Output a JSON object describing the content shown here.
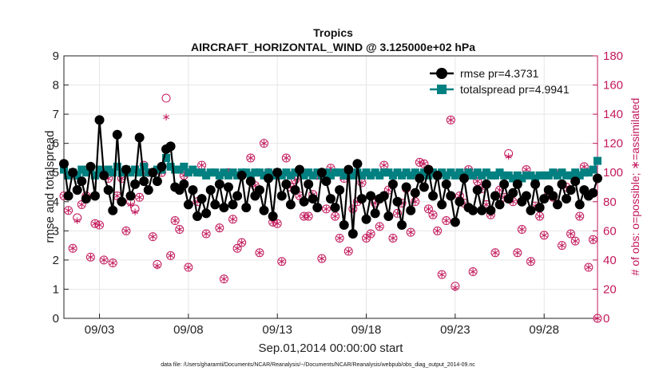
{
  "chart_data": {
    "type": "line",
    "title": "Tropics",
    "subtitle": "AIRCRAFT_HORIZONTAL_WIND @ 3.125000e+02 hPa",
    "xlabel": "Sep.01,2014 00:00:00 start",
    "ylabel": "rmse and totalspread",
    "ylabel_right": "# of obs: o=possible; ∗=assimilated",
    "footnote": "data file: /Users/gharamti/Documents/NCAR/Reanalysis/~/Documents/NCAR/Reanalysis/webpub/obs_diag_output_2014-09.nc",
    "xlim": [
      1,
      31
    ],
    "ylim": [
      0,
      9
    ],
    "ylim_right": [
      0,
      180
    ],
    "x_ticks": [
      3,
      8,
      13,
      18,
      23,
      28
    ],
    "x_tick_labels": [
      "09/03",
      "09/08",
      "09/13",
      "09/18",
      "09/23",
      "09/28"
    ],
    "y_ticks": [
      0,
      1,
      2,
      3,
      4,
      5,
      6,
      7,
      8,
      9
    ],
    "y_tick_labels": [
      "0",
      "1",
      "2",
      "3",
      "4",
      "5",
      "6",
      "7",
      "8",
      "9"
    ],
    "y_right_ticks": [
      0,
      20,
      40,
      60,
      80,
      100,
      120,
      140,
      160,
      180
    ],
    "y_right_tick_labels": [
      "0",
      "20",
      "40",
      "60",
      "80",
      "100",
      "120",
      "140",
      "160",
      "180"
    ],
    "grid": true,
    "legend_position": "top-right",
    "colors": {
      "rmse": "#000000",
      "totalspread": "#008080",
      "obs": "#c2185b"
    },
    "series": [
      {
        "name": "rmse pr=4.3731",
        "axis": "left",
        "x": [
          1.0,
          1.25,
          1.5,
          1.75,
          2.0,
          2.25,
          2.5,
          2.75,
          3.0,
          3.25,
          3.5,
          3.75,
          4.0,
          4.25,
          4.5,
          4.75,
          5.0,
          5.25,
          5.5,
          5.75,
          6.0,
          6.25,
          6.5,
          6.75,
          7.0,
          7.25,
          7.5,
          7.75,
          8.0,
          8.25,
          8.5,
          8.75,
          9.0,
          9.25,
          9.5,
          9.75,
          10.0,
          10.25,
          10.5,
          10.75,
          11.0,
          11.25,
          11.5,
          11.75,
          12.0,
          12.25,
          12.5,
          12.75,
          13.0,
          13.25,
          13.5,
          13.75,
          14.0,
          14.25,
          14.5,
          14.75,
          15.0,
          15.25,
          15.5,
          15.75,
          16.0,
          16.25,
          16.5,
          16.75,
          17.0,
          17.25,
          17.5,
          17.75,
          18.0,
          18.25,
          18.5,
          18.75,
          19.0,
          19.25,
          19.5,
          19.75,
          20.0,
          20.25,
          20.5,
          20.75,
          21.0,
          21.25,
          21.5,
          21.75,
          22.0,
          22.25,
          22.5,
          22.75,
          23.0,
          23.25,
          23.5,
          23.75,
          24.0,
          24.25,
          24.5,
          24.75,
          25.0,
          25.25,
          25.5,
          25.75,
          26.0,
          26.25,
          26.5,
          26.75,
          27.0,
          27.25,
          27.5,
          27.75,
          28.0,
          28.25,
          28.5,
          28.75,
          29.0,
          29.25,
          29.5,
          29.75,
          30.0,
          30.25,
          30.5,
          30.75,
          31.0
        ],
        "values": [
          5.3,
          4.2,
          5.0,
          4.4,
          4.7,
          4.1,
          5.2,
          4.2,
          6.8,
          4.9,
          4.4,
          3.7,
          6.3,
          4.0,
          5.1,
          4.2,
          4.6,
          6.2,
          4.7,
          4.4,
          5.0,
          4.7,
          5.2,
          5.8,
          5.9,
          4.5,
          4.4,
          4.6,
          3.9,
          4.4,
          3.5,
          4.1,
          3.6,
          4.4,
          3.9,
          4.6,
          3.8,
          4.5,
          3.9,
          4.2,
          4.9,
          3.8,
          4.7,
          4.2,
          4.4,
          3.7,
          4.8,
          3.5,
          5.0,
          4.2,
          4.6,
          3.9,
          4.4,
          5.1,
          4.0,
          4.6,
          4.1,
          3.8,
          5.0,
          4.7,
          4.1,
          3.8,
          4.4,
          3.2,
          5.1,
          2.9,
          5.3,
          4.1,
          3.4,
          4.2,
          3.6,
          4.1,
          4.2,
          3.5,
          4.6,
          4.0,
          3.2,
          4.5,
          3.7,
          4.3,
          4.8,
          4.5,
          5.1,
          4.2,
          4.9,
          3.9,
          4.6,
          4.2,
          3.3,
          4.0,
          4.8,
          3.8,
          3.7,
          4.4,
          3.7,
          4.6,
          3.7,
          4.2,
          3.9,
          4.6,
          4.1,
          4.3,
          4.6,
          4.0,
          4.2,
          3.7,
          4.6,
          3.8,
          4.1,
          4.4,
          4.2,
          3.9,
          4.6,
          4.1,
          4.4,
          4.7,
          3.9,
          4.4,
          4.2,
          4.3,
          4.8
        ]
      },
      {
        "name": "totalspread pr=4.9941",
        "axis": "left",
        "x": [
          1.0,
          1.25,
          1.5,
          1.75,
          2.0,
          2.25,
          2.5,
          2.75,
          3.0,
          3.25,
          3.5,
          3.75,
          4.0,
          4.25,
          4.5,
          4.75,
          5.0,
          5.25,
          5.5,
          5.75,
          6.0,
          6.25,
          6.5,
          6.75,
          7.0,
          7.25,
          7.5,
          7.75,
          8.0,
          8.25,
          8.5,
          8.75,
          9.0,
          9.25,
          9.5,
          9.75,
          10.0,
          10.25,
          10.5,
          10.75,
          11.0,
          11.25,
          11.5,
          11.75,
          12.0,
          12.25,
          12.5,
          12.75,
          13.0,
          13.25,
          13.5,
          13.75,
          14.0,
          14.25,
          14.5,
          14.75,
          15.0,
          15.25,
          15.5,
          15.75,
          16.0,
          16.25,
          16.5,
          16.75,
          17.0,
          17.25,
          17.5,
          17.75,
          18.0,
          18.25,
          18.5,
          18.75,
          19.0,
          19.25,
          19.5,
          19.75,
          20.0,
          20.25,
          20.5,
          20.75,
          21.0,
          21.25,
          21.5,
          21.75,
          22.0,
          22.25,
          22.5,
          22.75,
          23.0,
          23.25,
          23.5,
          23.75,
          24.0,
          24.25,
          24.5,
          24.75,
          25.0,
          25.25,
          25.5,
          25.75,
          26.0,
          26.25,
          26.5,
          26.75,
          27.0,
          27.25,
          27.5,
          27.75,
          28.0,
          28.25,
          28.5,
          28.75,
          29.0,
          29.25,
          29.5,
          29.75,
          30.0,
          30.25,
          30.5,
          30.75,
          31.0
        ],
        "values": [
          5.1,
          4.9,
          5.0,
          4.9,
          5.1,
          5.0,
          5.1,
          4.9,
          5.1,
          5.0,
          5.1,
          5.0,
          5.2,
          5.0,
          5.1,
          5.0,
          5.1,
          5.0,
          5.2,
          5.0,
          5.0,
          5.1,
          5.1,
          5.5,
          5.2,
          5.1,
          5.1,
          5.2,
          5.0,
          5.1,
          5.0,
          5.0,
          4.9,
          5.0,
          5.0,
          4.9,
          5.0,
          4.9,
          5.0,
          4.9,
          5.0,
          5.0,
          4.9,
          5.0,
          5.0,
          4.9,
          5.0,
          4.9,
          5.0,
          4.9,
          5.0,
          4.9,
          5.0,
          5.0,
          4.9,
          5.0,
          4.9,
          5.0,
          4.9,
          5.0,
          4.9,
          5.0,
          5.0,
          4.9,
          5.0,
          4.9,
          5.0,
          4.9,
          5.0,
          4.9,
          5.0,
          4.9,
          5.0,
          5.0,
          4.9,
          5.0,
          4.9,
          5.0,
          4.9,
          5.0,
          4.9,
          5.0,
          4.9,
          5.0,
          4.9,
          5.0,
          4.9,
          5.0,
          4.9,
          5.0,
          4.9,
          5.0,
          4.9,
          5.0,
          4.9,
          5.0,
          4.9,
          4.9,
          5.0,
          4.9,
          4.9,
          4.8,
          4.9,
          4.8,
          4.9,
          4.9,
          4.8,
          4.9,
          4.9,
          4.9,
          5.0,
          4.9,
          5.0,
          4.9,
          4.9,
          5.0,
          4.9,
          5.0,
          5.0,
          5.1,
          5.4
        ]
      },
      {
        "name": "possible",
        "marker": "circle",
        "axis": "right",
        "x": [
          1.0,
          1.25,
          1.5,
          1.75,
          2.0,
          2.25,
          2.5,
          2.75,
          3.0,
          3.25,
          3.5,
          3.75,
          4.0,
          4.25,
          4.5,
          4.75,
          5.0,
          5.25,
          5.5,
          5.75,
          6.0,
          6.25,
          6.5,
          6.75,
          7.0,
          7.25,
          7.5,
          7.75,
          8.0,
          8.25,
          8.5,
          8.75,
          9.0,
          9.25,
          9.5,
          9.75,
          10.0,
          10.25,
          10.5,
          10.75,
          11.0,
          11.25,
          11.5,
          11.75,
          12.0,
          12.25,
          12.5,
          12.75,
          13.0,
          13.25,
          13.5,
          13.75,
          14.0,
          14.25,
          14.5,
          14.75,
          15.0,
          15.25,
          15.5,
          15.75,
          16.0,
          16.25,
          16.5,
          16.75,
          17.0,
          17.25,
          17.5,
          17.75,
          18.0,
          18.25,
          18.5,
          18.75,
          19.0,
          19.25,
          19.5,
          19.75,
          20.0,
          20.25,
          20.5,
          20.75,
          21.0,
          21.25,
          21.5,
          21.75,
          22.0,
          22.25,
          22.5,
          22.75,
          23.0,
          23.25,
          23.5,
          23.75,
          24.0,
          24.25,
          24.5,
          24.75,
          25.0,
          25.25,
          25.5,
          25.75,
          26.0,
          26.25,
          26.5,
          26.75,
          27.0,
          27.25,
          27.5,
          27.75,
          28.0,
          28.25,
          28.5,
          28.75,
          29.0,
          29.25,
          29.5,
          29.75,
          30.0,
          30.25,
          30.5,
          30.75,
          31.0
        ],
        "values": [
          84,
          74,
          48,
          69,
          78,
          84,
          42,
          65,
          64,
          40,
          96,
          38,
          84,
          96,
          60,
          80,
          75,
          83,
          105,
          100,
          56,
          37,
          100,
          151,
          43,
          67,
          61,
          98,
          35,
          88,
          80,
          105,
          58,
          88,
          78,
          62,
          27,
          100,
          68,
          48,
          52,
          76,
          110,
          91,
          45,
          120,
          100,
          66,
          65,
          39,
          110,
          90,
          95,
          84,
          70,
          70,
          85,
          98,
          41,
          75,
          103,
          70,
          55,
          96,
          46,
          75,
          80,
          93,
          55,
          58,
          79,
          63,
          105,
          88,
          55,
          72,
          79,
          89,
          59,
          80,
          107,
          106,
          75,
          71,
          60,
          30,
          67,
          136,
          22,
          84,
          79,
          102,
          32,
          94,
          89,
          78,
          71,
          45,
          88,
          83,
          113,
          80,
          45,
          61,
          102,
          39,
          77,
          70,
          57,
          85,
          83,
          99,
          50,
          90,
          58,
          53,
          70,
          104,
          35,
          54,
          0
        ]
      },
      {
        "name": "assimilated",
        "marker": "asterisk",
        "axis": "right",
        "x": [
          1.0,
          1.25,
          1.5,
          1.75,
          2.0,
          2.25,
          2.5,
          2.75,
          3.0,
          3.25,
          3.5,
          3.75,
          4.0,
          4.25,
          4.5,
          4.75,
          5.0,
          5.25,
          5.5,
          5.75,
          6.0,
          6.25,
          6.5,
          6.75,
          7.0,
          7.25,
          7.5,
          7.75,
          8.0,
          8.25,
          8.5,
          8.75,
          9.0,
          9.25,
          9.5,
          9.75,
          10.0,
          10.25,
          10.5,
          10.75,
          11.0,
          11.25,
          11.5,
          11.75,
          12.0,
          12.25,
          12.5,
          12.75,
          13.0,
          13.25,
          13.5,
          13.75,
          14.0,
          14.25,
          14.5,
          14.75,
          15.0,
          15.25,
          15.5,
          15.75,
          16.0,
          16.25,
          16.5,
          16.75,
          17.0,
          17.25,
          17.5,
          17.75,
          18.0,
          18.25,
          18.5,
          18.75,
          19.0,
          19.25,
          19.5,
          19.75,
          20.0,
          20.25,
          20.5,
          20.75,
          21.0,
          21.25,
          21.5,
          21.75,
          22.0,
          22.25,
          22.5,
          22.75,
          23.0,
          23.25,
          23.5,
          23.75,
          24.0,
          24.25,
          24.5,
          24.75,
          25.0,
          25.25,
          25.5,
          25.75,
          26.0,
          26.25,
          26.5,
          26.75,
          27.0,
          27.25,
          27.5,
          27.75,
          28.0,
          28.25,
          28.5,
          28.75,
          29.0,
          29.25,
          29.5,
          29.75,
          30.0,
          30.25,
          30.5,
          30.75,
          31.0
        ],
        "values": [
          84,
          74,
          48,
          67,
          78,
          84,
          42,
          65,
          64,
          40,
          96,
          38,
          84,
          96,
          60,
          78,
          73,
          83,
          105,
          100,
          56,
          36,
          100,
          138,
          43,
          67,
          61,
          98,
          35,
          88,
          80,
          105,
          58,
          88,
          78,
          62,
          27,
          100,
          68,
          48,
          52,
          76,
          110,
          91,
          45,
          120,
          100,
          66,
          65,
          39,
          110,
          90,
          95,
          84,
          70,
          70,
          85,
          98,
          41,
          75,
          103,
          70,
          55,
          96,
          46,
          75,
          80,
          93,
          55,
          58,
          79,
          63,
          105,
          88,
          55,
          72,
          79,
          89,
          59,
          80,
          107,
          106,
          75,
          71,
          60,
          30,
          67,
          136,
          21,
          84,
          79,
          102,
          32,
          94,
          89,
          78,
          71,
          45,
          88,
          83,
          111,
          80,
          45,
          61,
          102,
          39,
          77,
          70,
          57,
          85,
          83,
          99,
          50,
          90,
          58,
          53,
          70,
          104,
          35,
          54,
          0
        ]
      }
    ],
    "legend": [
      "rmse pr=4.3731",
      "totalspread pr=4.9941"
    ]
  }
}
